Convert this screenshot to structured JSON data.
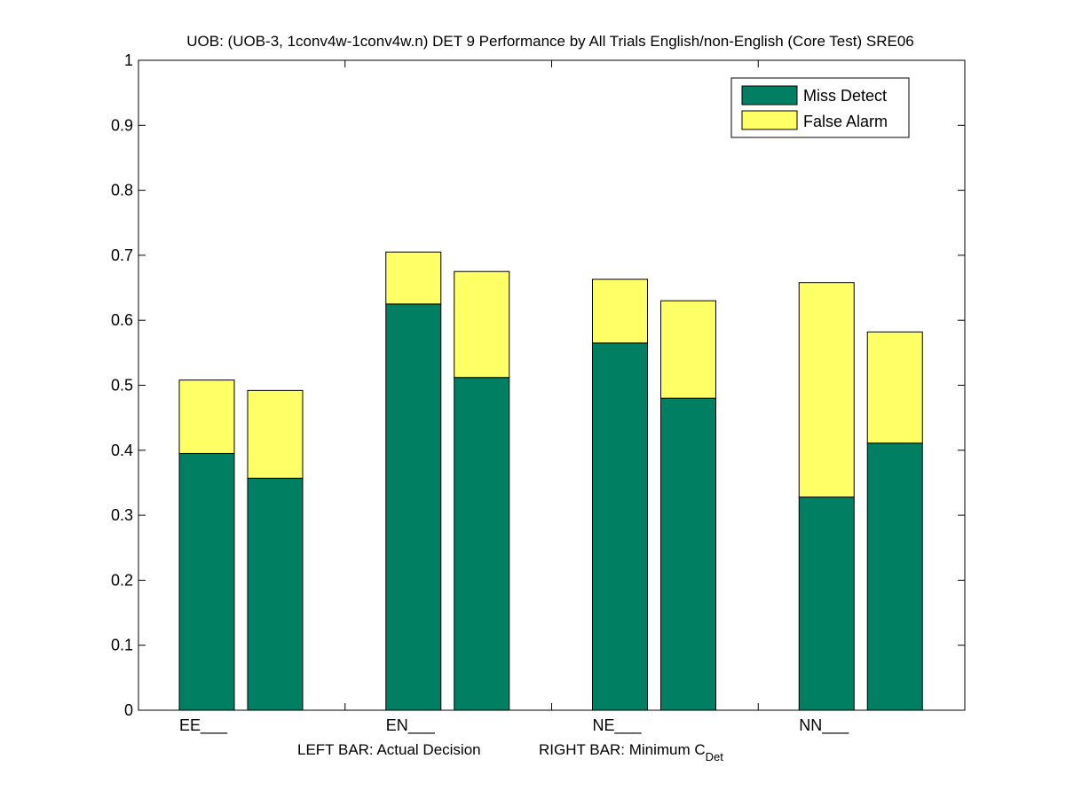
{
  "chart_data": {
    "type": "bar",
    "stacked": true,
    "title": "UOB: (UOB-3, 1conv4w-1conv4w.n) DET 9 Performance by All Trials English/non-English (Core Test) SRE06",
    "categories": [
      "EE___",
      "EN___",
      "NE___",
      "NN___"
    ],
    "xlabel": {
      "left": "LEFT BAR: Actual Decision",
      "right_prefix": "RIGHT BAR: Minimum C",
      "right_subscript": "Det"
    },
    "ylabel": "",
    "ylim": [
      0,
      1
    ],
    "yticks": [
      "0",
      "0.1",
      "0.2",
      "0.3",
      "0.4",
      "0.5",
      "0.6",
      "0.7",
      "0.8",
      "0.9",
      "1"
    ],
    "grid": false,
    "legend_position": "top-right",
    "bars_per_category": [
      "Actual Decision",
      "Minimum C_Det"
    ],
    "series": [
      {
        "name": "Miss Detect",
        "color": "#007F62",
        "actual_decision": [
          0.395,
          0.625,
          0.565,
          0.328
        ],
        "minimum_cdet": [
          0.357,
          0.512,
          0.48,
          0.411
        ]
      },
      {
        "name": "False Alarm",
        "color": "#FFFF66",
        "actual_decision": [
          0.113,
          0.08,
          0.098,
          0.33
        ],
        "minimum_cdet": [
          0.135,
          0.163,
          0.15,
          0.171
        ]
      }
    ]
  }
}
